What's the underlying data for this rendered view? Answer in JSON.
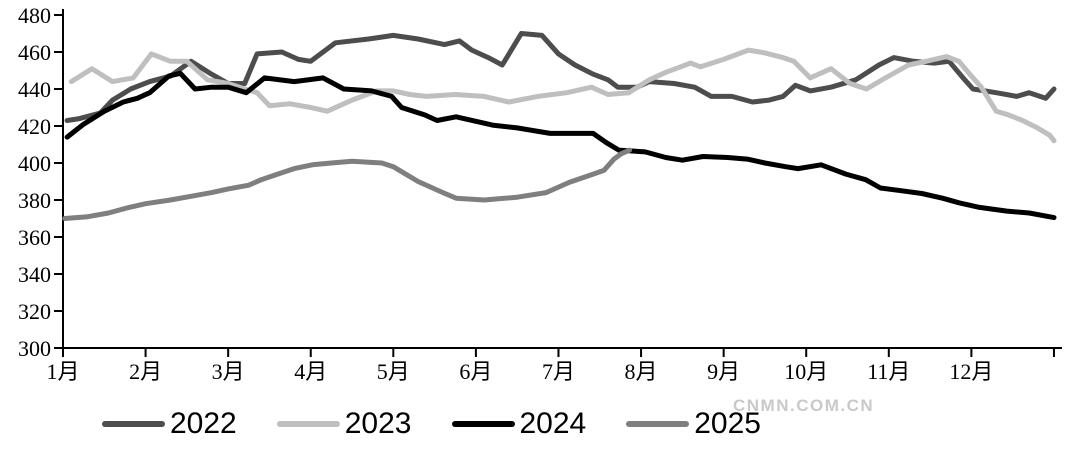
{
  "chart_data": {
    "type": "line",
    "title": "",
    "grid": false,
    "legend_position": "bottom",
    "x_axis": {
      "unit": "month",
      "range": [
        1,
        13
      ],
      "tick_labels": [
        "1月",
        "2月",
        "3月",
        "4月",
        "5月",
        "6月",
        "7月",
        "8月",
        "9月",
        "10月",
        "11月",
        "12月"
      ]
    },
    "y_axis": {
      "min": 300,
      "max": 480,
      "tick_step": 20,
      "tick_labels": [
        "480",
        "460",
        "440",
        "420",
        "400",
        "380",
        "360",
        "340",
        "320",
        "300"
      ]
    },
    "series": [
      {
        "name": "2022",
        "color": "#4d4d4d",
        "points": [
          [
            1.05,
            423
          ],
          [
            1.2,
            424
          ],
          [
            1.45,
            427
          ],
          [
            1.6,
            434
          ],
          [
            1.82,
            440
          ],
          [
            2.05,
            444
          ],
          [
            2.3,
            447
          ],
          [
            2.55,
            455
          ],
          [
            2.8,
            448
          ],
          [
            3.0,
            443
          ],
          [
            3.2,
            443
          ],
          [
            3.35,
            459
          ],
          [
            3.65,
            460
          ],
          [
            3.85,
            456
          ],
          [
            4.0,
            455
          ],
          [
            4.3,
            465
          ],
          [
            4.7,
            467
          ],
          [
            5.0,
            469
          ],
          [
            5.3,
            467
          ],
          [
            5.62,
            464
          ],
          [
            5.8,
            466
          ],
          [
            5.95,
            461
          ],
          [
            6.15,
            457
          ],
          [
            6.32,
            453
          ],
          [
            6.55,
            470
          ],
          [
            6.8,
            469
          ],
          [
            7.0,
            459
          ],
          [
            7.2,
            453
          ],
          [
            7.42,
            448
          ],
          [
            7.6,
            445
          ],
          [
            7.72,
            441
          ],
          [
            7.95,
            441
          ],
          [
            8.1,
            444
          ],
          [
            8.4,
            443
          ],
          [
            8.65,
            441
          ],
          [
            8.85,
            436
          ],
          [
            9.1,
            436
          ],
          [
            9.35,
            433
          ],
          [
            9.55,
            434
          ],
          [
            9.72,
            436
          ],
          [
            9.87,
            442
          ],
          [
            10.05,
            439
          ],
          [
            10.3,
            441
          ],
          [
            10.6,
            445
          ],
          [
            10.88,
            453
          ],
          [
            11.06,
            457
          ],
          [
            11.3,
            455
          ],
          [
            11.55,
            454
          ],
          [
            11.73,
            455
          ],
          [
            11.9,
            446
          ],
          [
            12.02,
            440
          ],
          [
            12.3,
            438
          ],
          [
            12.55,
            436
          ],
          [
            12.7,
            438
          ],
          [
            12.9,
            435
          ],
          [
            13.0,
            440
          ]
        ]
      },
      {
        "name": "2023",
        "color": "#bfbfbf",
        "points": [
          [
            1.1,
            444
          ],
          [
            1.35,
            451
          ],
          [
            1.6,
            444
          ],
          [
            1.85,
            446
          ],
          [
            2.07,
            459
          ],
          [
            2.3,
            455
          ],
          [
            2.5,
            455
          ],
          [
            2.75,
            445
          ],
          [
            3.0,
            443
          ],
          [
            3.2,
            440
          ],
          [
            3.35,
            438
          ],
          [
            3.5,
            431
          ],
          [
            3.75,
            432
          ],
          [
            4.0,
            430
          ],
          [
            4.2,
            428
          ],
          [
            4.5,
            434
          ],
          [
            4.8,
            439
          ],
          [
            5.0,
            439
          ],
          [
            5.2,
            437
          ],
          [
            5.4,
            436
          ],
          [
            5.75,
            437
          ],
          [
            6.1,
            436
          ],
          [
            6.4,
            433
          ],
          [
            6.75,
            436
          ],
          [
            7.1,
            438
          ],
          [
            7.4,
            441
          ],
          [
            7.6,
            437
          ],
          [
            7.85,
            438
          ],
          [
            8.1,
            445
          ],
          [
            8.3,
            449
          ],
          [
            8.6,
            454
          ],
          [
            8.72,
            452
          ],
          [
            9.0,
            456
          ],
          [
            9.3,
            461
          ],
          [
            9.5,
            459.5
          ],
          [
            9.72,
            457
          ],
          [
            9.85,
            455
          ],
          [
            10.05,
            446
          ],
          [
            10.3,
            451
          ],
          [
            10.53,
            443
          ],
          [
            10.73,
            440
          ],
          [
            10.96,
            446
          ],
          [
            11.24,
            453
          ],
          [
            11.45,
            455
          ],
          [
            11.7,
            457.5
          ],
          [
            11.85,
            455
          ],
          [
            12.0,
            447
          ],
          [
            12.12,
            441
          ],
          [
            12.3,
            428
          ],
          [
            12.45,
            426
          ],
          [
            12.62,
            423
          ],
          [
            12.8,
            419
          ],
          [
            12.95,
            415
          ],
          [
            13.0,
            412
          ]
        ]
      },
      {
        "name": "2024",
        "color": "#000000",
        "points": [
          [
            1.05,
            414
          ],
          [
            1.25,
            421
          ],
          [
            1.5,
            428
          ],
          [
            1.73,
            433
          ],
          [
            1.9,
            435
          ],
          [
            2.05,
            438
          ],
          [
            2.28,
            447
          ],
          [
            2.42,
            448.5
          ],
          [
            2.6,
            440
          ],
          [
            2.8,
            441
          ],
          [
            3.0,
            441
          ],
          [
            3.22,
            438
          ],
          [
            3.44,
            446
          ],
          [
            3.8,
            444
          ],
          [
            4.15,
            446
          ],
          [
            4.4,
            440
          ],
          [
            4.74,
            439
          ],
          [
            4.98,
            436
          ],
          [
            5.1,
            430
          ],
          [
            5.38,
            426
          ],
          [
            5.53,
            423
          ],
          [
            5.76,
            425
          ],
          [
            6.2,
            420.5
          ],
          [
            6.5,
            419
          ],
          [
            6.9,
            416
          ],
          [
            7.13,
            416
          ],
          [
            7.42,
            416
          ],
          [
            7.58,
            411
          ],
          [
            7.73,
            407
          ],
          [
            8.05,
            406
          ],
          [
            8.3,
            403
          ],
          [
            8.5,
            401.5
          ],
          [
            8.75,
            403.5
          ],
          [
            9.05,
            403
          ],
          [
            9.3,
            402
          ],
          [
            9.5,
            400
          ],
          [
            9.75,
            398
          ],
          [
            9.9,
            397
          ],
          [
            10.18,
            399
          ],
          [
            10.48,
            394
          ],
          [
            10.72,
            391
          ],
          [
            10.9,
            386.5
          ],
          [
            11.16,
            385
          ],
          [
            11.4,
            383.5
          ],
          [
            11.65,
            381
          ],
          [
            11.85,
            378.5
          ],
          [
            12.1,
            376
          ],
          [
            12.43,
            374
          ],
          [
            12.7,
            373
          ],
          [
            13.0,
            370.5
          ]
        ]
      },
      {
        "name": "2025",
        "color": "#7f7f7f",
        "points": [
          [
            1.02,
            370
          ],
          [
            1.3,
            371
          ],
          [
            1.55,
            373
          ],
          [
            1.8,
            376
          ],
          [
            2.0,
            378
          ],
          [
            2.3,
            380
          ],
          [
            2.55,
            382
          ],
          [
            2.8,
            384
          ],
          [
            3.0,
            386
          ],
          [
            3.25,
            388
          ],
          [
            3.4,
            391
          ],
          [
            3.6,
            394
          ],
          [
            3.8,
            397
          ],
          [
            4.02,
            399
          ],
          [
            4.25,
            400
          ],
          [
            4.5,
            401
          ],
          [
            4.86,
            400
          ],
          [
            5.0,
            398
          ],
          [
            5.3,
            390
          ],
          [
            5.6,
            384
          ],
          [
            5.76,
            381
          ],
          [
            6.1,
            380
          ],
          [
            6.5,
            381.5
          ],
          [
            6.85,
            384
          ],
          [
            7.13,
            389.5
          ],
          [
            7.42,
            394
          ],
          [
            7.55,
            396
          ],
          [
            7.67,
            402
          ],
          [
            7.76,
            405
          ],
          [
            7.86,
            407
          ]
        ]
      }
    ]
  },
  "watermark": "CNMN.COM.CN",
  "colors": {
    "axis": "#000000",
    "background": "#ffffff",
    "watermark": "#c9c9c9"
  }
}
